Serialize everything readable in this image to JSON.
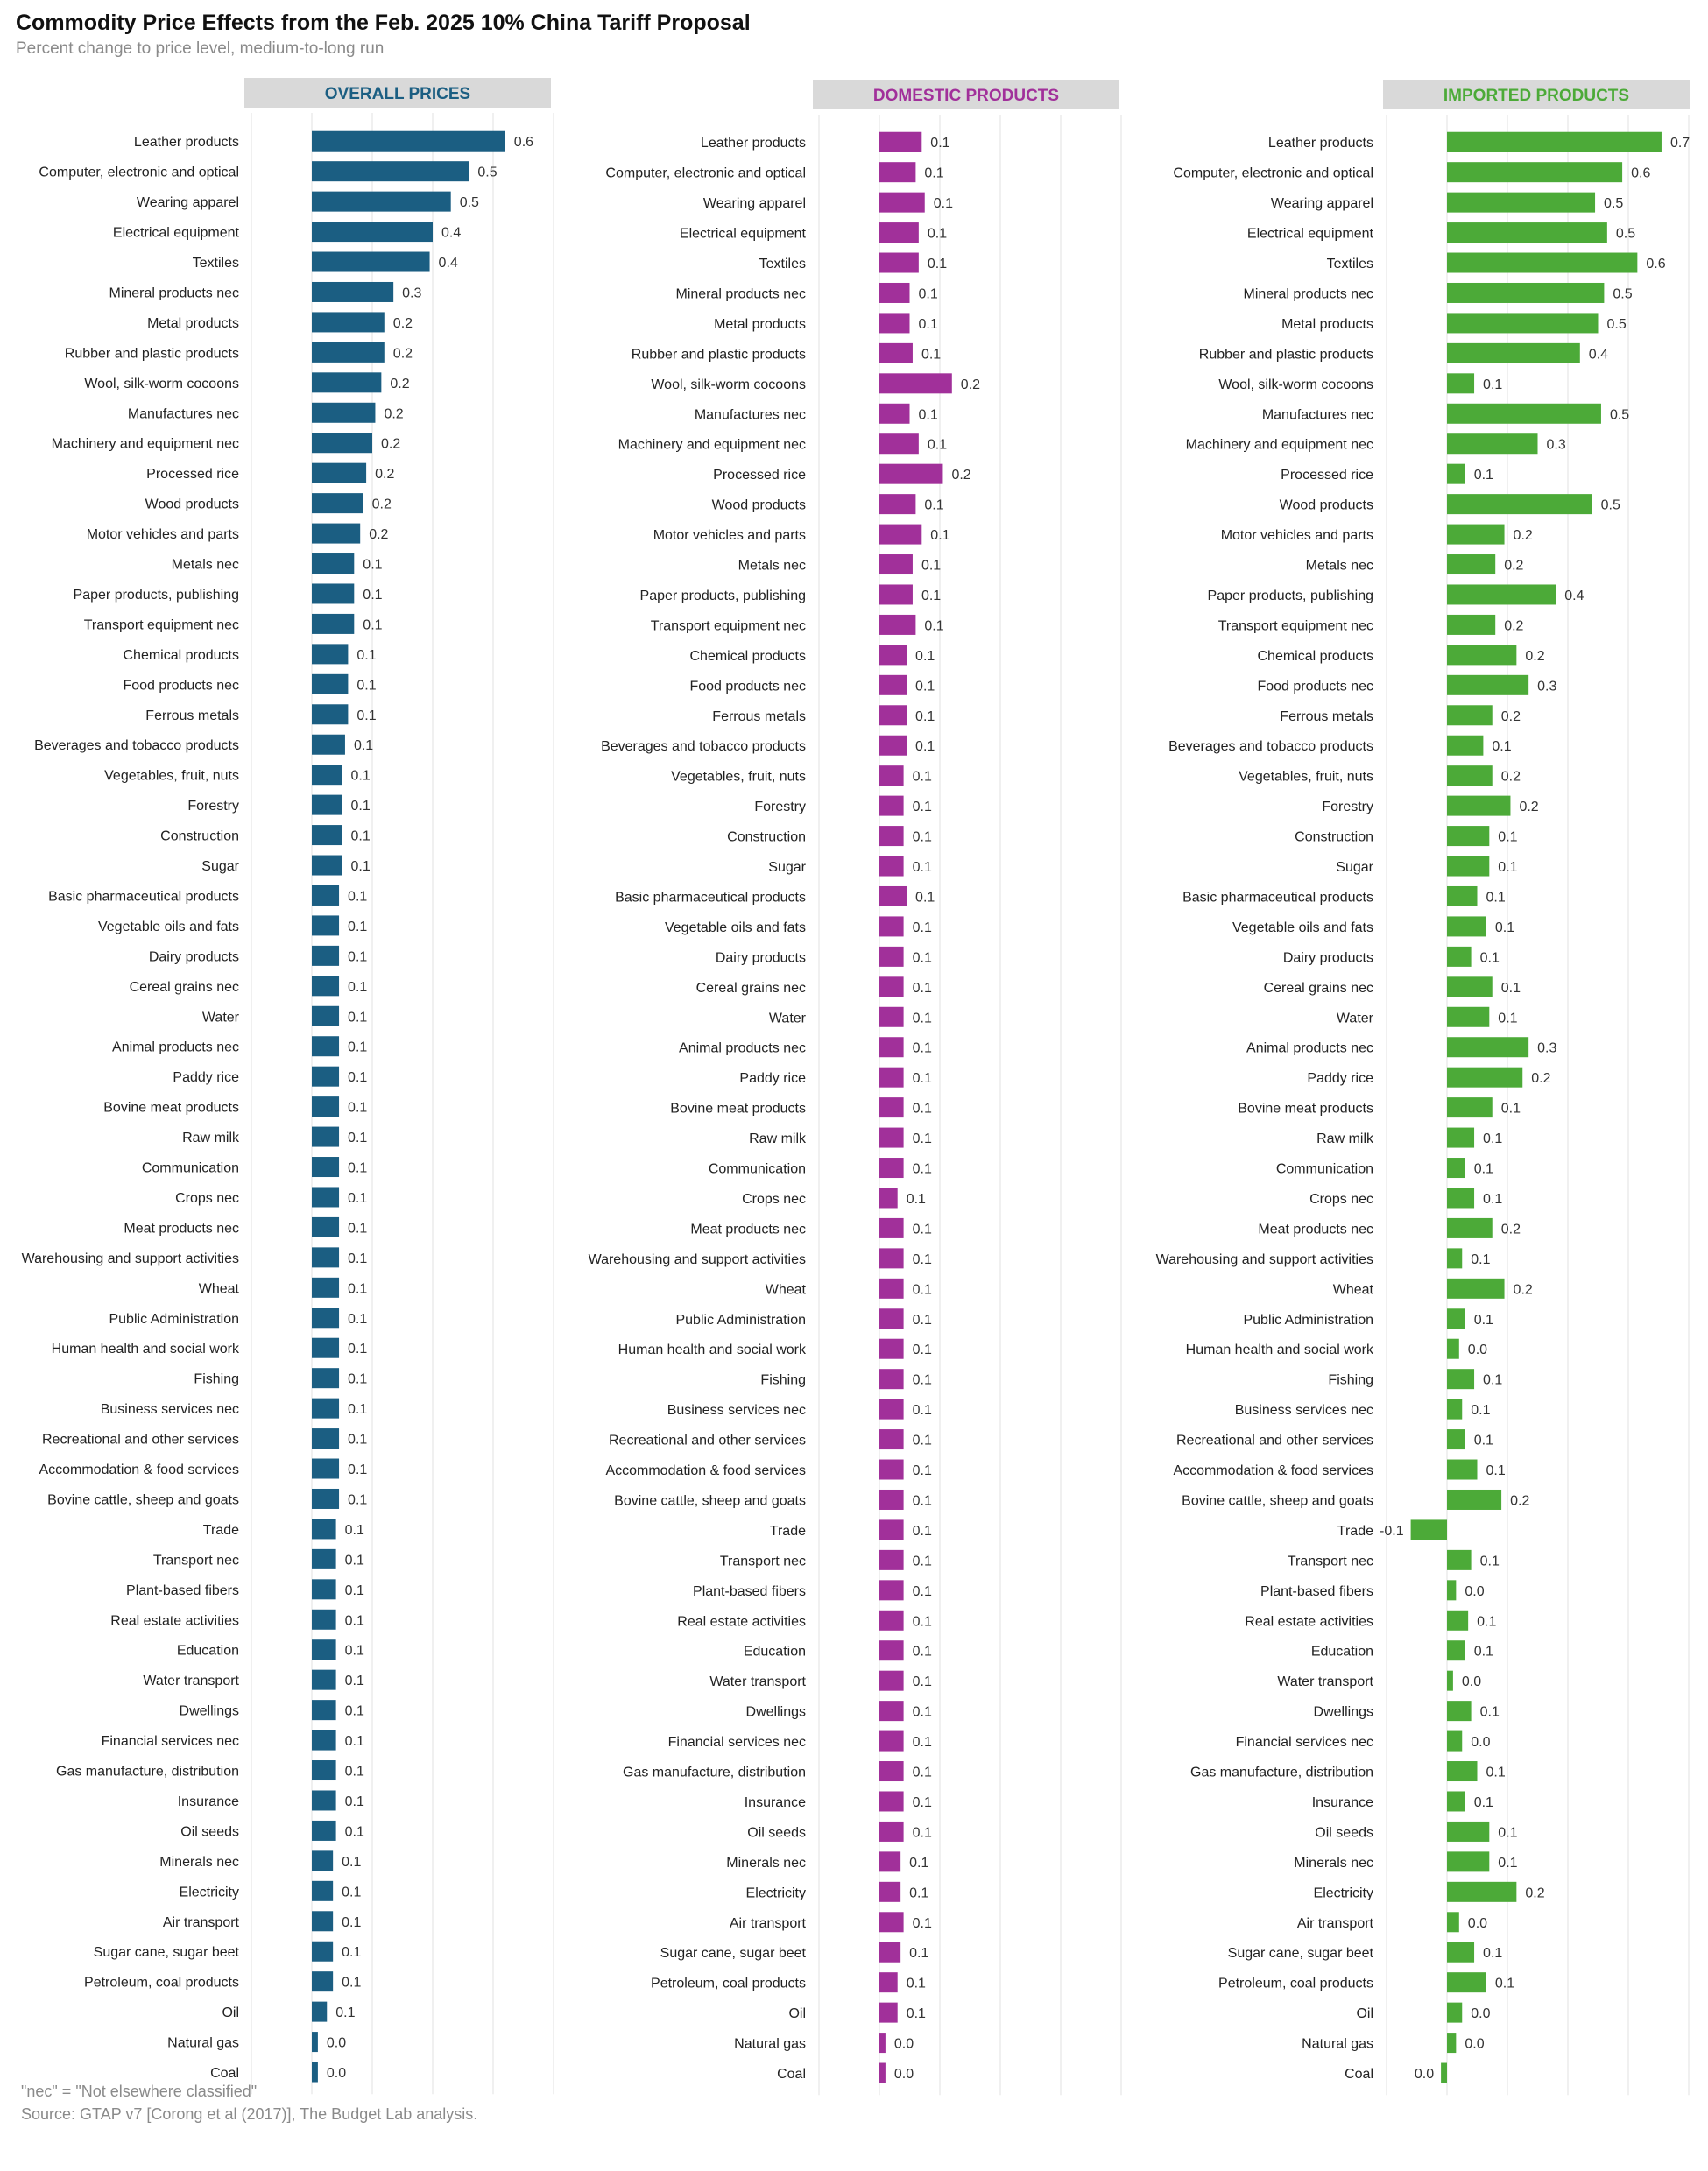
{
  "title": "Commodity Price Effects from the Feb. 2025 10% China Tariff Proposal",
  "subtitle": "Percent change to price level, medium-to-long run",
  "footnote": "\"nec\" = \"Not elsewhere classified\"",
  "source": "Source: GTAP v7 [Corong et al (2017)], The Budget Lab analysis.",
  "colors": {
    "overall": "#1b5e82",
    "domestic": "#a1309a",
    "imported": "#4caa38",
    "header_bg": "#d9d9d9",
    "grid": "#e6e6e6"
  },
  "chart_data": {
    "type": "bar",
    "orientation": "horizontal",
    "categories": [
      "Leather products",
      "Computer, electronic and optical",
      "Wearing apparel",
      "Electrical equipment",
      "Textiles",
      "Mineral products nec",
      "Metal products",
      "Rubber and plastic products",
      "Wool, silk-worm cocoons",
      "Manufactures nec",
      "Machinery and equipment nec",
      "Processed rice",
      "Wood products",
      "Motor vehicles and parts",
      "Metals nec",
      "Paper products, publishing",
      "Transport equipment nec",
      "Chemical products",
      "Food products nec",
      "Ferrous metals",
      "Beverages and tobacco products",
      "Vegetables, fruit, nuts",
      "Forestry",
      "Construction",
      "Sugar",
      "Basic pharmaceutical products",
      "Vegetable oils and fats",
      "Dairy products",
      "Cereal grains nec",
      "Water",
      "Animal products nec",
      "Paddy rice",
      "Bovine meat products",
      "Raw milk",
      "Communication",
      "Crops nec",
      "Meat products nec",
      "Warehousing and support activities",
      "Wheat",
      "Public Administration",
      "Human health and social work",
      "Fishing",
      "Business services nec",
      "Recreational and other services",
      "Accommodation & food services",
      "Bovine cattle, sheep and goats",
      "Trade",
      "Transport nec",
      "Plant-based fibers",
      "Real estate activities",
      "Education",
      "Water transport",
      "Dwellings",
      "Financial services nec",
      "Gas manufacture, distribution",
      "Insurance",
      "Oil seeds",
      "Minerals nec",
      "Electricity",
      "Air transport",
      "Sugar cane, sugar beet",
      "Petroleum, coal products",
      "Oil",
      "Natural gas",
      "Coal"
    ],
    "panels": [
      {
        "name": "OVERALL PRICES",
        "values": [
          0.64,
          0.52,
          0.46,
          0.4,
          0.39,
          0.27,
          0.24,
          0.24,
          0.23,
          0.21,
          0.2,
          0.18,
          0.17,
          0.16,
          0.14,
          0.14,
          0.14,
          0.12,
          0.12,
          0.12,
          0.11,
          0.1,
          0.1,
          0.1,
          0.1,
          0.09,
          0.09,
          0.09,
          0.09,
          0.09,
          0.09,
          0.09,
          0.09,
          0.09,
          0.09,
          0.09,
          0.09,
          0.09,
          0.09,
          0.09,
          0.09,
          0.09,
          0.09,
          0.09,
          0.09,
          0.09,
          0.08,
          0.08,
          0.08,
          0.08,
          0.08,
          0.08,
          0.08,
          0.08,
          0.08,
          0.08,
          0.08,
          0.07,
          0.07,
          0.07,
          0.07,
          0.07,
          0.05,
          0.02,
          0.02
        ],
        "labels": [
          "0.6",
          "0.5",
          "0.5",
          "0.4",
          "0.4",
          "0.3",
          "0.2",
          "0.2",
          "0.2",
          "0.2",
          "0.2",
          "0.2",
          "0.2",
          "0.2",
          "0.1",
          "0.1",
          "0.1",
          "0.1",
          "0.1",
          "0.1",
          "0.1",
          "0.1",
          "0.1",
          "0.1",
          "0.1",
          "0.1",
          "0.1",
          "0.1",
          "0.1",
          "0.1",
          "0.1",
          "0.1",
          "0.1",
          "0.1",
          "0.1",
          "0.1",
          "0.1",
          "0.1",
          "0.1",
          "0.1",
          "0.1",
          "0.1",
          "0.1",
          "0.1",
          "0.1",
          "0.1",
          "0.1",
          "0.1",
          "0.1",
          "0.1",
          "0.1",
          "0.1",
          "0.1",
          "0.1",
          "0.1",
          "0.1",
          "0.1",
          "0.1",
          "0.1",
          "0.1",
          "0.1",
          "0.1",
          "0.1",
          "0.0",
          "0.0"
        ]
      },
      {
        "name": "DOMESTIC PRODUCTS",
        "values": [
          0.14,
          0.12,
          0.15,
          0.13,
          0.13,
          0.1,
          0.1,
          0.11,
          0.24,
          0.1,
          0.13,
          0.21,
          0.12,
          0.14,
          0.11,
          0.11,
          0.12,
          0.09,
          0.09,
          0.09,
          0.09,
          0.08,
          0.08,
          0.08,
          0.08,
          0.09,
          0.08,
          0.08,
          0.08,
          0.08,
          0.08,
          0.08,
          0.08,
          0.08,
          0.08,
          0.06,
          0.08,
          0.08,
          0.08,
          0.08,
          0.08,
          0.08,
          0.08,
          0.08,
          0.08,
          0.08,
          0.08,
          0.08,
          0.08,
          0.08,
          0.08,
          0.08,
          0.08,
          0.08,
          0.08,
          0.08,
          0.08,
          0.07,
          0.07,
          0.08,
          0.07,
          0.06,
          0.06,
          0.02,
          0.02
        ],
        "labels": [
          "0.1",
          "0.1",
          "0.1",
          "0.1",
          "0.1",
          "0.1",
          "0.1",
          "0.1",
          "0.2",
          "0.1",
          "0.1",
          "0.2",
          "0.1",
          "0.1",
          "0.1",
          "0.1",
          "0.1",
          "0.1",
          "0.1",
          "0.1",
          "0.1",
          "0.1",
          "0.1",
          "0.1",
          "0.1",
          "0.1",
          "0.1",
          "0.1",
          "0.1",
          "0.1",
          "0.1",
          "0.1",
          "0.1",
          "0.1",
          "0.1",
          "0.1",
          "0.1",
          "0.1",
          "0.1",
          "0.1",
          "0.1",
          "0.1",
          "0.1",
          "0.1",
          "0.1",
          "0.1",
          "0.1",
          "0.1",
          "0.1",
          "0.1",
          "0.1",
          "0.1",
          "0.1",
          "0.1",
          "0.1",
          "0.1",
          "0.1",
          "0.1",
          "0.1",
          "0.1",
          "0.1",
          "0.1",
          "0.1",
          "0.0",
          "0.0"
        ]
      },
      {
        "name": "IMPORTED PRODUCTS",
        "values": [
          0.71,
          0.58,
          0.49,
          0.53,
          0.63,
          0.52,
          0.5,
          0.44,
          0.09,
          0.51,
          0.3,
          0.06,
          0.48,
          0.19,
          0.16,
          0.36,
          0.16,
          0.23,
          0.27,
          0.15,
          0.12,
          0.15,
          0.21,
          0.14,
          0.14,
          0.1,
          0.13,
          0.08,
          0.15,
          0.14,
          0.27,
          0.25,
          0.15,
          0.09,
          0.06,
          0.09,
          0.15,
          0.05,
          0.19,
          0.06,
          0.04,
          0.09,
          0.05,
          0.06,
          0.1,
          0.18,
          -0.12,
          0.08,
          0.03,
          0.07,
          0.06,
          0.02,
          0.08,
          0.05,
          0.1,
          0.06,
          0.14,
          0.14,
          0.23,
          0.04,
          0.09,
          0.13,
          0.05,
          0.03,
          -0.02
        ],
        "labels": [
          "0.7",
          "0.6",
          "0.5",
          "0.5",
          "0.6",
          "0.5",
          "0.5",
          "0.4",
          "0.1",
          "0.5",
          "0.3",
          "0.1",
          "0.5",
          "0.2",
          "0.2",
          "0.4",
          "0.2",
          "0.2",
          "0.3",
          "0.2",
          "0.1",
          "0.2",
          "0.2",
          "0.1",
          "0.1",
          "0.1",
          "0.1",
          "0.1",
          "0.1",
          "0.1",
          "0.3",
          "0.2",
          "0.1",
          "0.1",
          "0.1",
          "0.1",
          "0.2",
          "0.1",
          "0.2",
          "0.1",
          "0.0",
          "0.1",
          "0.1",
          "0.1",
          "0.1",
          "0.2",
          "-0.1",
          "0.1",
          "0.0",
          "0.1",
          "0.1",
          "0.0",
          "0.1",
          "0.0",
          "0.1",
          "0.1",
          "0.1",
          "0.1",
          "0.2",
          "0.0",
          "0.1",
          "0.1",
          "0.0",
          "0.0",
          "0.0"
        ]
      }
    ],
    "xlim": [
      -0.2,
      0.8
    ],
    "grid": true
  }
}
